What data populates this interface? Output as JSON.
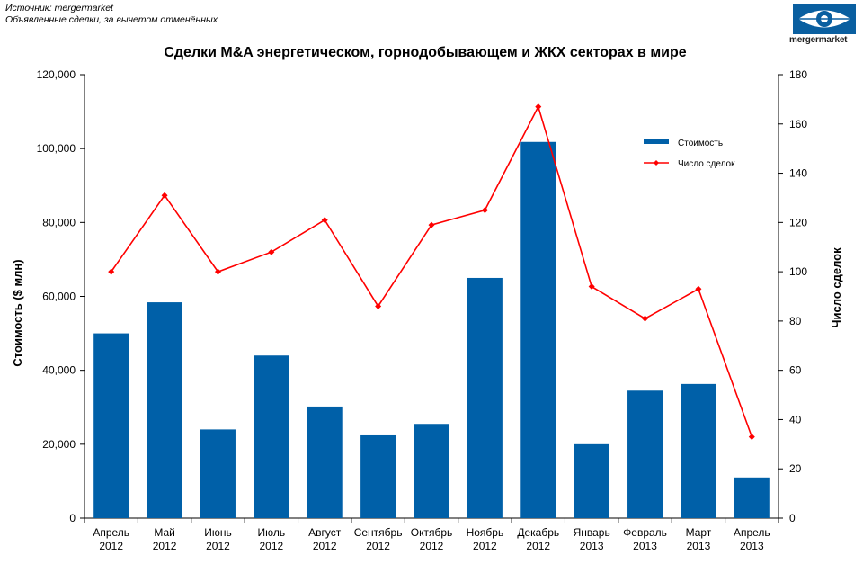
{
  "source": {
    "line1": "Источник: mergermarket",
    "line2": "Объявленные сделки, за вычетом отменённых"
  },
  "logo": {
    "text": "mergermarket",
    "icon": "eye-logo-icon",
    "color": "#0a5fa0"
  },
  "chart_data": {
    "type": "bar",
    "title": "Сделки M&A энергетическом, горнодобывающем и ЖКХ  секторах в мире",
    "categories": [
      [
        "Апрель",
        "2012"
      ],
      [
        "Май",
        "2012"
      ],
      [
        "Июнь",
        "2012"
      ],
      [
        "Июль",
        "2012"
      ],
      [
        "Август",
        "2012"
      ],
      [
        "Сентябрь",
        "2012"
      ],
      [
        "Октябрь",
        "2012"
      ],
      [
        "Ноябрь",
        "2012"
      ],
      [
        "Декабрь",
        "2012"
      ],
      [
        "Январь",
        "2013"
      ],
      [
        "Февраль",
        "2013"
      ],
      [
        "Март",
        "2013"
      ],
      [
        "Апрель",
        "2013"
      ]
    ],
    "series": [
      {
        "name": "Стоимость",
        "kind": "bar",
        "axis": "left",
        "color": "#0060a8",
        "values": [
          50000,
          58400,
          24000,
          44000,
          30200,
          22400,
          25500,
          65000,
          101800,
          20000,
          34500,
          36300,
          11000
        ]
      },
      {
        "name": "Число сделок",
        "kind": "line",
        "axis": "right",
        "color": "#ff0000",
        "values": [
          100,
          131,
          100,
          108,
          121,
          86,
          119,
          125,
          167,
          94,
          81,
          93,
          33
        ]
      }
    ],
    "ylabel": "Стоимость ($ млн)",
    "y2label": "Число сделок",
    "ylim": [
      0,
      120000
    ],
    "y2lim": [
      0,
      180
    ],
    "yticks": [
      "0",
      "20,000",
      "40,000",
      "60,000",
      "80,000",
      "100,000",
      "120,000"
    ],
    "y2ticks": [
      "0",
      "20",
      "40",
      "60",
      "80",
      "100",
      "120",
      "140",
      "160",
      "180"
    ],
    "grid": false,
    "legend_position": "top-right"
  }
}
